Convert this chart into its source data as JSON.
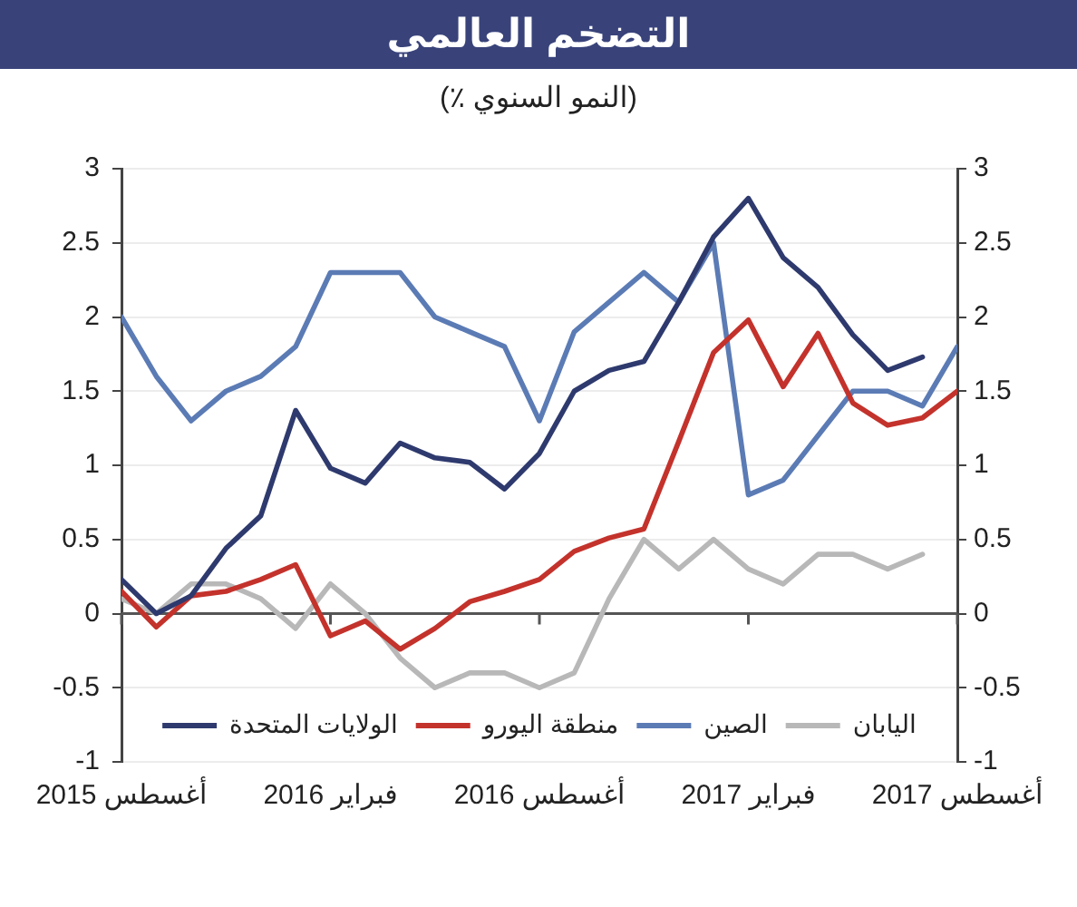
{
  "chart_data": {
    "type": "line",
    "title": "التضخم العالمي",
    "subtitle": "(النمو السنوي ٪)",
    "x": [
      "2015-08",
      "2015-09",
      "2015-10",
      "2015-11",
      "2015-12",
      "2016-01",
      "2016-02",
      "2016-03",
      "2016-04",
      "2016-05",
      "2016-06",
      "2016-07",
      "2016-08",
      "2016-09",
      "2016-10",
      "2016-11",
      "2016-12",
      "2017-01",
      "2017-02",
      "2017-03",
      "2017-04",
      "2017-05",
      "2017-06",
      "2017-07",
      "2017-08"
    ],
    "series": [
      {
        "name": "الولايات المتحدة",
        "color": "#2e3a6e",
        "values": [
          0.23,
          0.0,
          0.12,
          0.44,
          0.66,
          1.37,
          0.98,
          0.88,
          1.15,
          1.05,
          1.02,
          0.84,
          1.08,
          1.5,
          1.64,
          1.7,
          2.1,
          2.54,
          2.8,
          2.4,
          2.2,
          1.88,
          1.64,
          1.73,
          null
        ]
      },
      {
        "name": "منطقة اليورو",
        "color": "#c4322c",
        "values": [
          0.15,
          -0.09,
          0.12,
          0.15,
          0.23,
          0.33,
          -0.15,
          -0.05,
          -0.24,
          -0.1,
          0.08,
          0.15,
          0.23,
          0.42,
          0.51,
          0.57,
          1.16,
          1.76,
          1.98,
          1.53,
          1.89,
          1.42,
          1.27,
          1.32,
          1.5
        ]
      },
      {
        "name": "الصين",
        "color": "#5b7bb5",
        "values": [
          2.0,
          1.6,
          1.3,
          1.5,
          1.6,
          1.8,
          2.3,
          2.3,
          2.3,
          2.0,
          1.9,
          1.8,
          1.3,
          1.9,
          2.1,
          2.3,
          2.1,
          2.5,
          0.8,
          0.9,
          1.2,
          1.5,
          1.5,
          1.4,
          1.8
        ]
      },
      {
        "name": "اليابان",
        "color": "#b8b8b8",
        "values": [
          0.1,
          0.0,
          0.2,
          0.2,
          0.1,
          -0.1,
          0.2,
          0.0,
          -0.3,
          -0.5,
          -0.4,
          -0.4,
          -0.5,
          -0.4,
          0.1,
          0.5,
          0.3,
          0.5,
          0.3,
          0.2,
          0.4,
          0.4,
          0.3,
          0.4,
          null
        ]
      }
    ],
    "xlim": [
      "2015-08",
      "2017-08"
    ],
    "xticks": [
      {
        "value": "2015-08",
        "label": "أغسطس 2015"
      },
      {
        "value": "2016-02",
        "label": "فبراير 2016"
      },
      {
        "value": "2016-08",
        "label": "أغسطس 2016"
      },
      {
        "value": "2017-02",
        "label": "فبراير 2017"
      },
      {
        "value": "2017-08",
        "label": "أغسطس 2017"
      }
    ],
    "ylim": [
      -1,
      3
    ],
    "yticks": [
      -1,
      -0.5,
      0,
      0.5,
      1,
      1.5,
      2,
      2.5,
      3
    ],
    "y2lim": [
      -1,
      3
    ],
    "y2ticks": [
      -1,
      -0.5,
      0,
      0.5,
      1,
      1.5,
      2,
      2.5,
      3
    ],
    "grid": "y",
    "legend": "bottom"
  }
}
